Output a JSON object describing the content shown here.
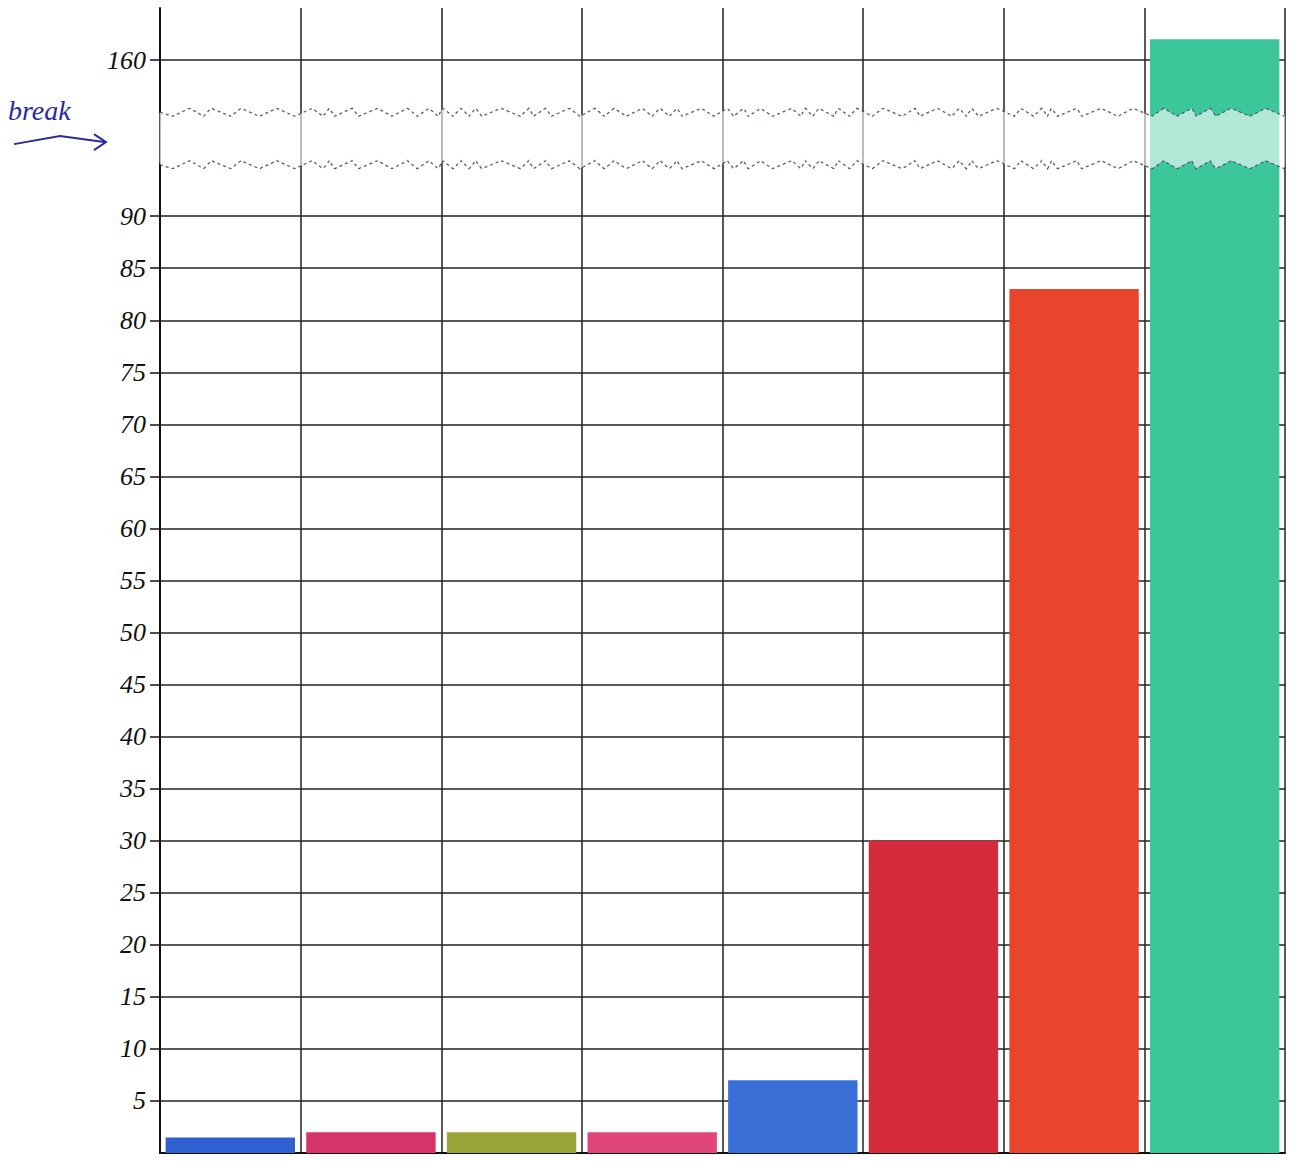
{
  "chart_data": {
    "type": "bar",
    "categories": [
      null,
      null,
      null,
      null,
      null,
      null,
      null,
      null
    ],
    "values": [
      1.5,
      2,
      2,
      2,
      7,
      30,
      83,
      162
    ],
    "colors": [
      "#2f5fd0",
      "#d6336c",
      "#9aa63a",
      "#e0457b",
      "#3b6fd8",
      "#d62b3b",
      "#e8452c",
      "#3cc79a"
    ],
    "ylim": [
      0,
      165
    ],
    "yticks": [
      5,
      10,
      15,
      20,
      25,
      30,
      35,
      40,
      45,
      50,
      55,
      60,
      65,
      70,
      75,
      80,
      85,
      90,
      160
    ],
    "ybreak": [
      95,
      155
    ],
    "annotations": [
      "break"
    ],
    "grid": true,
    "tick_labels": "y"
  }
}
